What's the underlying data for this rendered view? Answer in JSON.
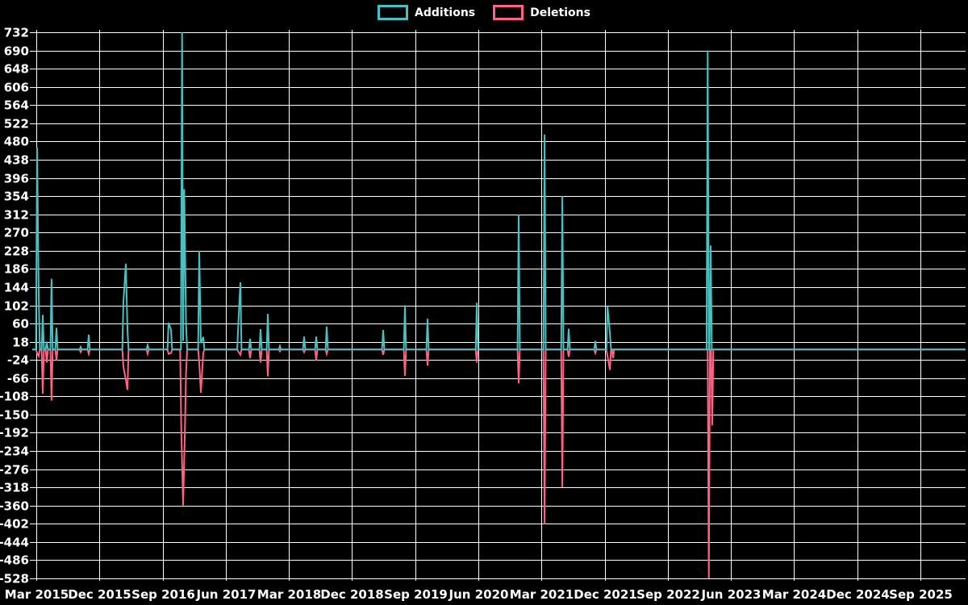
{
  "legend": {
    "items": [
      {
        "label": "Additions",
        "color": "#4bc0c0"
      },
      {
        "label": "Deletions",
        "color": "#ff6384"
      }
    ]
  },
  "chart_data": {
    "type": "line",
    "title": "",
    "background_color": "#000000",
    "grid_color": "#ffffff",
    "text_color": "#ffffff",
    "legend_position": "top",
    "grid": true,
    "x_axis": {
      "tick_labels": [
        "Mar 2015",
        "Dec 2015",
        "Sep 2016",
        "Jun 2017",
        "Mar 2018",
        "Dec 2018",
        "Sep 2019",
        "Jun 2020",
        "Mar 2021",
        "Dec 2021",
        "Sep 2022",
        "Jun 2023",
        "Mar 2024",
        "Dec 2024",
        "Sep 2025"
      ]
    },
    "y_axis": {
      "min": -528,
      "max": 732,
      "tick_step": 42,
      "tick_labels": [
        732,
        690,
        648,
        606,
        564,
        522,
        480,
        438,
        396,
        354,
        312,
        270,
        228,
        186,
        144,
        102,
        60,
        18,
        -24,
        -66,
        -108,
        -150,
        -192,
        -234,
        -276,
        -318,
        -360,
        -402,
        -444,
        -486,
        -528
      ]
    },
    "spike_format": [
      "x_fraction_of_plot_width",
      "value"
    ],
    "series": [
      {
        "name": "Additions",
        "color": "#4bc0c0",
        "baseline": 0,
        "spikes": [
          [
            0.0052,
            466
          ],
          [
            0.0069,
            122
          ],
          [
            0.0112,
            80
          ],
          [
            0.0156,
            18
          ],
          [
            0.0207,
            163
          ],
          [
            0.0259,
            50
          ],
          [
            0.0519,
            6
          ],
          [
            0.0605,
            34
          ],
          [
            0.0977,
            110
          ],
          [
            0.1003,
            198
          ],
          [
            0.102,
            45
          ],
          [
            0.1236,
            10
          ],
          [
            0.1461,
            62
          ],
          [
            0.1487,
            45
          ],
          [
            0.1605,
            732
          ],
          [
            0.1616,
            20
          ],
          [
            0.1628,
            370
          ],
          [
            0.1647,
            60
          ],
          [
            0.1789,
            228
          ],
          [
            0.1806,
            15
          ],
          [
            0.1832,
            29
          ],
          [
            0.2208,
            62
          ],
          [
            0.223,
            155
          ],
          [
            0.2334,
            25
          ],
          [
            0.2446,
            47
          ],
          [
            0.2524,
            82
          ],
          [
            0.2653,
            8
          ],
          [
            0.2913,
            30
          ],
          [
            0.3042,
            30
          ],
          [
            0.3155,
            53
          ],
          [
            0.376,
            45
          ],
          [
            0.3993,
            102
          ],
          [
            0.4235,
            71
          ],
          [
            0.4763,
            108
          ],
          [
            0.5212,
            312
          ],
          [
            0.5489,
            496
          ],
          [
            0.5679,
            354
          ],
          [
            0.5748,
            48
          ],
          [
            0.6033,
            20
          ],
          [
            0.6163,
            100
          ],
          [
            0.6189,
            37
          ],
          [
            0.7237,
            690
          ],
          [
            0.7269,
            240
          ]
        ]
      },
      {
        "name": "Deletions",
        "color": "#ff6384",
        "baseline": 0,
        "spikes": [
          [
            0.0052,
            -8
          ],
          [
            0.0069,
            -15
          ],
          [
            0.0112,
            -102
          ],
          [
            0.0156,
            -30
          ],
          [
            0.0207,
            -118
          ],
          [
            0.0259,
            -25
          ],
          [
            0.0519,
            -6
          ],
          [
            0.0605,
            -10
          ],
          [
            0.0977,
            -40
          ],
          [
            0.1003,
            -70
          ],
          [
            0.102,
            -93
          ],
          [
            0.1236,
            -10
          ],
          [
            0.1461,
            -10
          ],
          [
            0.1487,
            -8
          ],
          [
            0.1596,
            -180
          ],
          [
            0.1616,
            -360
          ],
          [
            0.1636,
            -180
          ],
          [
            0.1647,
            -55
          ],
          [
            0.1789,
            -30
          ],
          [
            0.1806,
            -100
          ],
          [
            0.1832,
            -8
          ],
          [
            0.2208,
            -5
          ],
          [
            0.223,
            -12
          ],
          [
            0.2334,
            -20
          ],
          [
            0.2446,
            -30
          ],
          [
            0.2524,
            -62
          ],
          [
            0.2653,
            -4
          ],
          [
            0.2913,
            -6
          ],
          [
            0.3042,
            -25
          ],
          [
            0.3155,
            -10
          ],
          [
            0.376,
            -12
          ],
          [
            0.3993,
            -61
          ],
          [
            0.4235,
            -37
          ],
          [
            0.4763,
            -30
          ],
          [
            0.5212,
            -78
          ],
          [
            0.5489,
            -403
          ],
          [
            0.5679,
            -318
          ],
          [
            0.5748,
            -17
          ],
          [
            0.6033,
            -8
          ],
          [
            0.6163,
            -15
          ],
          [
            0.6189,
            -47
          ],
          [
            0.6223,
            -20
          ],
          [
            0.7249,
            -528
          ],
          [
            0.7285,
            -175
          ]
        ]
      }
    ]
  }
}
